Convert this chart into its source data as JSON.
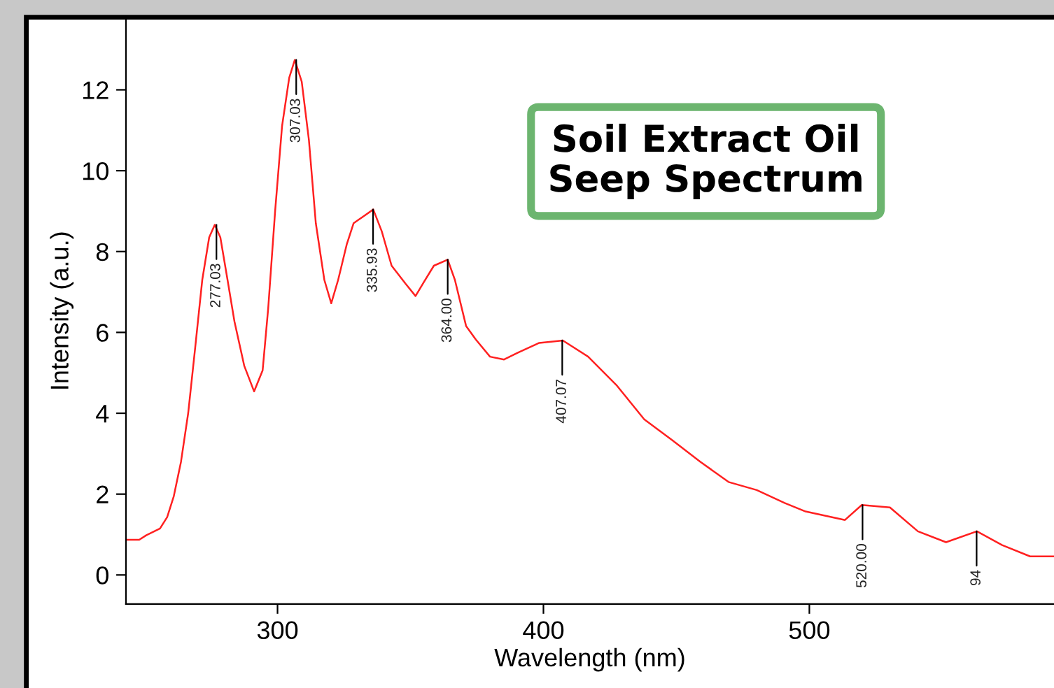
{
  "chart_data": {
    "type": "line",
    "title": "Soil Extract Oil\nSeep Spectrum",
    "xlabel": "Wavelength (nm)",
    "ylabel": "Intensity (a.u.)",
    "xlim": [
      243,
      592
    ],
    "xticks": [
      300,
      400,
      500
    ],
    "ylim": [
      -0.72,
      13.78
    ],
    "yticks": [
      0,
      2,
      4,
      6,
      8,
      10,
      12
    ],
    "grid": false,
    "legend": false,
    "series": [
      {
        "color": "#ff2020",
        "x": [
          243,
          248,
          250.6,
          255.8,
          258.5,
          261,
          263.7,
          266.4,
          269,
          271.7,
          274.3,
          276.4,
          278.5,
          281.2,
          283.8,
          287.5,
          291.2,
          294.4,
          296.5,
          299.1,
          301.7,
          304.4,
          306.5,
          309.1,
          311.8,
          314.4,
          317.6,
          320.2,
          322.8,
          326,
          328.6,
          332.3,
          336,
          339.2,
          342.9,
          348.2,
          351.9,
          355,
          358.8,
          364,
          366.7,
          370.9,
          374.6,
          379.9,
          385.2,
          390.4,
          398.4,
          407.3,
          416.8,
          427.4,
          437.9,
          448.5,
          459,
          469.6,
          480.2,
          490.7,
          498.6,
          513.4,
          519.7,
          530.3,
          540.8,
          551.4,
          563,
          572.5,
          583,
          592
        ],
        "values": [
          0.87,
          0.87,
          0.98,
          1.15,
          1.43,
          1.95,
          2.8,
          4.0,
          5.6,
          7.3,
          8.35,
          8.66,
          8.35,
          7.3,
          6.27,
          5.17,
          4.54,
          5.06,
          6.6,
          9.0,
          11.1,
          12.3,
          12.74,
          12.2,
          10.76,
          8.7,
          7.3,
          6.72,
          7.3,
          8.17,
          8.7,
          8.87,
          9.04,
          8.5,
          7.65,
          7.2,
          6.9,
          7.24,
          7.65,
          7.8,
          7.3,
          6.16,
          5.82,
          5.4,
          5.33,
          5.5,
          5.74,
          5.8,
          5.4,
          4.7,
          3.85,
          3.33,
          2.8,
          2.3,
          2.1,
          1.78,
          1.57,
          1.36,
          1.73,
          1.67,
          1.08,
          0.81,
          1.08,
          0.74,
          0.46,
          0.46
        ]
      }
    ],
    "annotations": [
      {
        "text": "277.03",
        "x": 277.03,
        "y": 8.66
      },
      {
        "text": "307.03",
        "x": 307.03,
        "y": 12.74
      },
      {
        "text": "335.93",
        "x": 335.93,
        "y": 9.04
      },
      {
        "text": "364.00",
        "x": 364.0,
        "y": 7.8
      },
      {
        "text": "407.07",
        "x": 407.07,
        "y": 5.8
      },
      {
        "text": "520.00",
        "x": 520.0,
        "y": 1.73
      },
      {
        "text": "94",
        "x": 562.9,
        "y": 1.08
      }
    ]
  }
}
